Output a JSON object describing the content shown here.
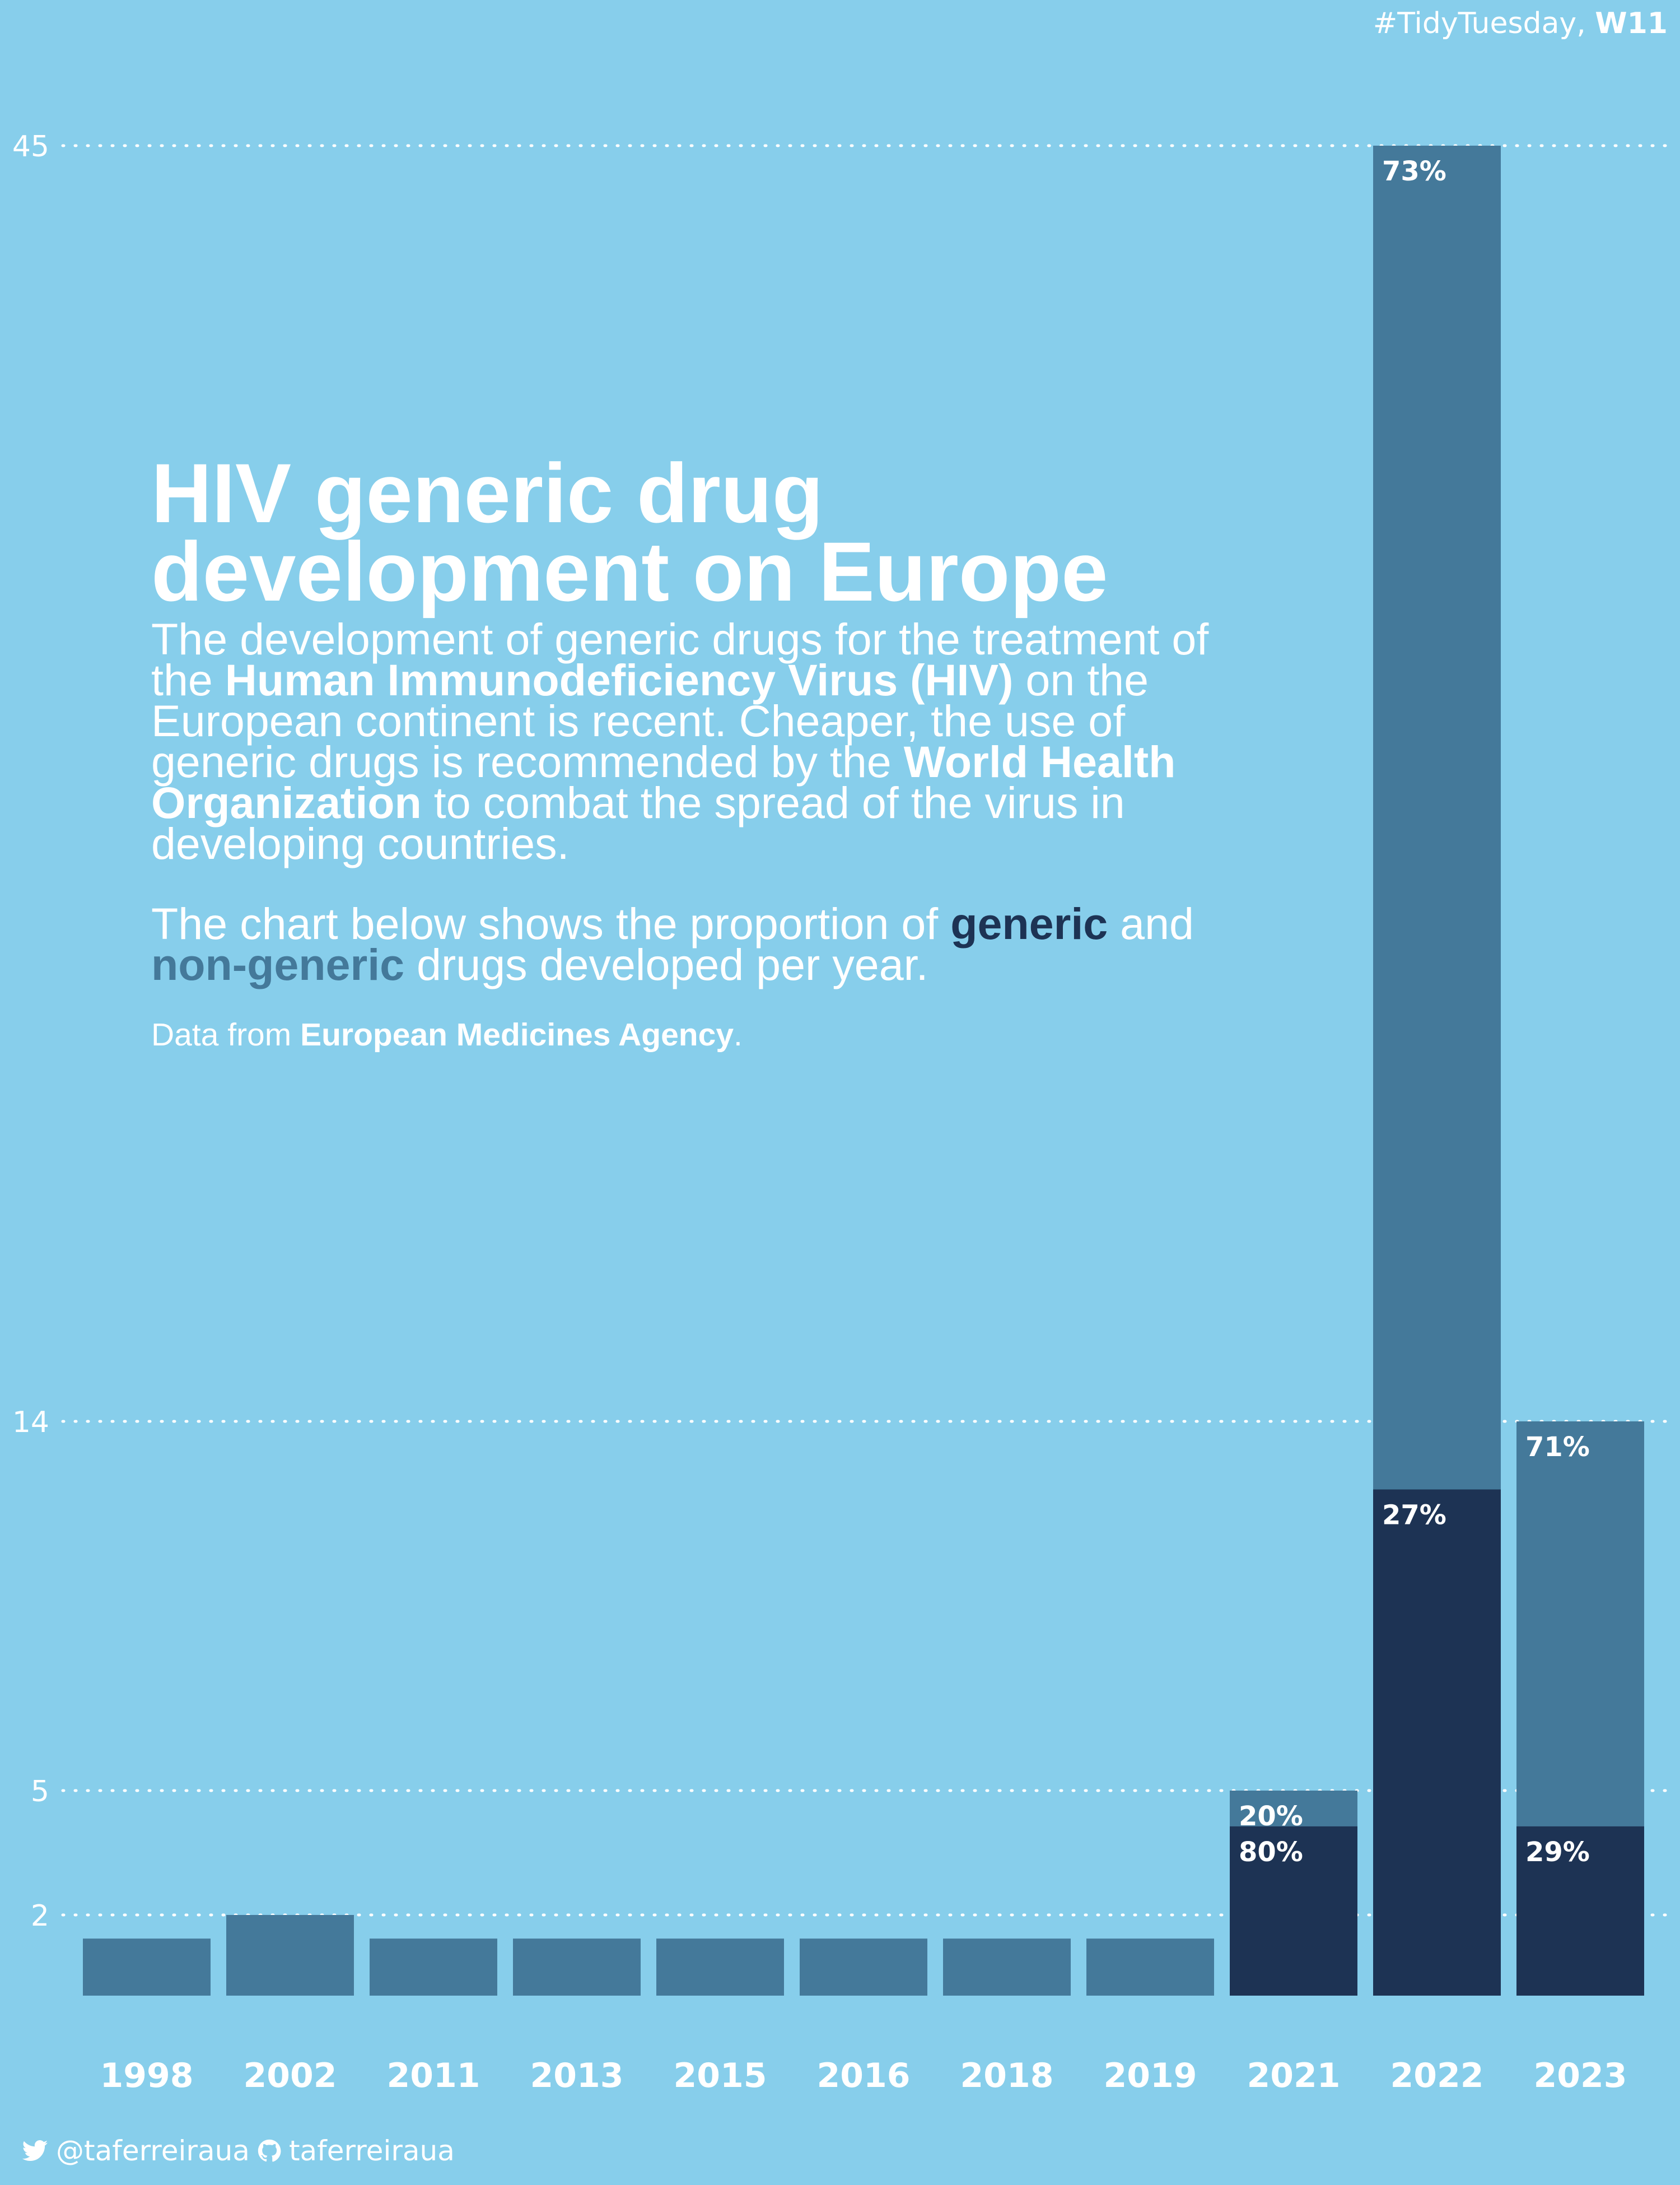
{
  "header": {
    "hashtag": "#TidyTuesday,",
    "week": "W11"
  },
  "intro": {
    "title": "HIV generic drug development on Europe",
    "desc_1": "The development of generic drugs for the treatment of the",
    "desc_bold_1": "Human Immunodeficiency Virus (HIV)",
    "desc_2": "on the European continent is recent. Cheaper, the use of generic drugs is recommended by the",
    "desc_bold_2": "World Health Organization",
    "desc_3": "to combat the spread of the virus in developing countries.",
    "chart_desc_1": "The chart below shows the proportion of",
    "generic_word": "generic",
    "chart_desc_and": "and",
    "nongeneric_word": "non-generic",
    "chart_desc_2": "drugs developed per year.",
    "source_prefix": "Data from",
    "source_name": "European Medicines Agency",
    "source_suffix": "."
  },
  "footer": {
    "twitter": "@taferreiraua",
    "github": "taferreiraua"
  },
  "colors": {
    "background": "#87CEEB",
    "generic": "#1d3354",
    "non_generic": "#44799a",
    "text": "#ffffff"
  },
  "chart_data": {
    "type": "bar",
    "stacked": true,
    "y_scale": "sqrt",
    "grid": "dotted horizontal",
    "categories": [
      "1998",
      "2002",
      "2011",
      "2013",
      "2015",
      "2016",
      "2018",
      "2019",
      "2021",
      "2022",
      "2023"
    ],
    "series": [
      {
        "name": "generic",
        "values": [
          0,
          0,
          0,
          0,
          0,
          0,
          0,
          0,
          4,
          12,
          4
        ]
      },
      {
        "name": "non-generic",
        "values": [
          1,
          2,
          1,
          1,
          1,
          1,
          1,
          1,
          1,
          33,
          10
        ]
      }
    ],
    "yticks": [
      2,
      5,
      14,
      45
    ],
    "ylim": [
      0,
      45
    ],
    "percent_labels": [
      {
        "category": "2021",
        "series": "non-generic",
        "text": "20%"
      },
      {
        "category": "2021",
        "series": "generic",
        "text": "80%"
      },
      {
        "category": "2022",
        "series": "non-generic",
        "text": "73%"
      },
      {
        "category": "2022",
        "series": "generic",
        "text": "27%"
      },
      {
        "category": "2023",
        "series": "non-generic",
        "text": "71%"
      },
      {
        "category": "2023",
        "series": "generic",
        "text": "29%"
      }
    ]
  }
}
